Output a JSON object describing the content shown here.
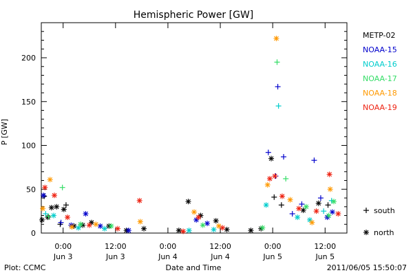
{
  "chart_data": {
    "type": "scatter",
    "title": "Hemispheric Power [GW]",
    "xlabel": "Date and Time",
    "ylabel": "P [GW]",
    "xlim": [
      "2011-06-02T19:00",
      "2011-06-05T17:00"
    ],
    "ylim": [
      0,
      240
    ],
    "yticks": [
      0,
      50,
      100,
      150,
      200
    ],
    "xticks": [
      {
        "t": "2011-06-03T00:00",
        "time": "0:00",
        "date": "Jun 3"
      },
      {
        "t": "2011-06-03T12:00",
        "time": "12:00",
        "date": "Jun 3"
      },
      {
        "t": "2011-06-04T00:00",
        "time": "0:00",
        "date": "Jun 4"
      },
      {
        "t": "2011-06-04T12:00",
        "time": "12:00",
        "date": "Jun 4"
      },
      {
        "t": "2011-06-05T00:00",
        "time": "0:00",
        "date": "Jun 5"
      },
      {
        "t": "2011-06-05T12:00",
        "time": "12:00",
        "date": "Jun 5"
      }
    ],
    "legend_placement": "right",
    "markers": {
      "south": "+",
      "north": "*"
    },
    "marker_legend": {
      "south_label": "south",
      "north_label": "north"
    },
    "series": [
      {
        "name": "METP-02",
        "color": "#000000",
        "points": [
          [
            "2011-06-02T19:10",
            15,
            "north"
          ],
          [
            "2011-06-02T19:40",
            42,
            "south"
          ],
          [
            "2011-06-02T20:30",
            18,
            "north"
          ],
          [
            "2011-06-02T21:20",
            29,
            "north"
          ],
          [
            "2011-06-02T22:30",
            30,
            "north"
          ],
          [
            "2011-06-02T23:20",
            10,
            "south"
          ],
          [
            "2011-06-03T00:10",
            27,
            "north"
          ],
          [
            "2011-06-03T00:40",
            32,
            "south"
          ],
          [
            "2011-06-03T02:30",
            8,
            "north"
          ],
          [
            "2011-06-03T04:30",
            9,
            "north"
          ],
          [
            "2011-06-03T06:30",
            12,
            "north"
          ],
          [
            "2011-06-03T10:30",
            8,
            "north"
          ],
          [
            "2011-06-03T14:30",
            3,
            "north"
          ],
          [
            "2011-06-03T18:30",
            5,
            "north"
          ],
          [
            "2011-06-04T02:30",
            3,
            "north"
          ],
          [
            "2011-06-04T04:40",
            36,
            "north"
          ],
          [
            "2011-06-04T07:30",
            20,
            "north"
          ],
          [
            "2011-06-04T11:00",
            14,
            "north"
          ],
          [
            "2011-06-04T13:30",
            4,
            "north"
          ],
          [
            "2011-06-04T19:00",
            3,
            "north"
          ],
          [
            "2011-06-04T21:20",
            5,
            "north"
          ],
          [
            "2011-06-04T23:40",
            85,
            "north"
          ],
          [
            "2011-06-05T00:20",
            41,
            "south"
          ],
          [
            "2011-06-05T02:00",
            32,
            "south"
          ],
          [
            "2011-06-05T07:00",
            26,
            "north"
          ],
          [
            "2011-06-05T10:30",
            34,
            "north"
          ],
          [
            "2011-06-05T12:40",
            32,
            "south"
          ]
        ]
      },
      {
        "name": "NOAA-15",
        "color": "#0000cc",
        "points": [
          [
            "2011-06-02T19:30",
            43,
            "north"
          ],
          [
            "2011-06-02T23:30",
            12,
            "south"
          ],
          [
            "2011-06-03T01:50",
            9,
            "north"
          ],
          [
            "2011-06-03T05:10",
            22,
            "north"
          ],
          [
            "2011-06-03T08:30",
            8,
            "north"
          ],
          [
            "2011-06-03T15:00",
            3,
            "north"
          ],
          [
            "2011-06-04T06:30",
            15,
            "north"
          ],
          [
            "2011-06-04T09:00",
            11,
            "north"
          ],
          [
            "2011-06-04T23:00",
            92,
            "south"
          ],
          [
            "2011-06-05T00:40",
            65,
            "south"
          ],
          [
            "2011-06-05T01:10",
            167,
            "south"
          ],
          [
            "2011-06-05T02:30",
            87,
            "south"
          ],
          [
            "2011-06-05T04:30",
            22,
            "south"
          ],
          [
            "2011-06-05T06:40",
            33,
            "south"
          ],
          [
            "2011-06-05T09:30",
            83,
            "south"
          ],
          [
            "2011-06-05T11:00",
            40,
            "south"
          ],
          [
            "2011-06-05T12:30",
            18,
            "north"
          ],
          [
            "2011-06-05T13:40",
            24,
            "north"
          ]
        ]
      },
      {
        "name": "NOAA-16",
        "color": "#00cccc",
        "points": [
          [
            "2011-06-02T20:00",
            22,
            "south"
          ],
          [
            "2011-06-02T21:50",
            20,
            "north"
          ],
          [
            "2011-06-03T03:30",
            6,
            "north"
          ],
          [
            "2011-06-03T09:30",
            5,
            "north"
          ],
          [
            "2011-06-04T04:50",
            3,
            "north"
          ],
          [
            "2011-06-04T10:30",
            4,
            "north"
          ],
          [
            "2011-06-04T22:30",
            32,
            "north"
          ],
          [
            "2011-06-05T01:20",
            145,
            "south"
          ],
          [
            "2011-06-05T05:40",
            18,
            "north"
          ],
          [
            "2011-06-05T08:30",
            15,
            "north"
          ],
          [
            "2011-06-05T11:40",
            25,
            "south"
          ],
          [
            "2011-06-05T13:30",
            37,
            "south"
          ]
        ]
      },
      {
        "name": "NOAA-17",
        "color": "#33dd66",
        "points": [
          [
            "2011-06-02T20:40",
            19,
            "south"
          ],
          [
            "2011-06-02T23:50",
            52,
            "south"
          ],
          [
            "2011-06-03T04:00",
            10,
            "north"
          ],
          [
            "2011-06-03T11:00",
            8,
            "north"
          ],
          [
            "2011-06-04T08:00",
            9,
            "north"
          ],
          [
            "2011-06-04T21:40",
            6,
            "north"
          ],
          [
            "2011-06-05T01:00",
            195,
            "south"
          ],
          [
            "2011-06-05T03:00",
            62,
            "south"
          ],
          [
            "2011-06-05T07:40",
            30,
            "north"
          ],
          [
            "2011-06-05T12:50",
            20,
            "north"
          ],
          [
            "2011-06-05T14:00",
            36,
            "north"
          ]
        ]
      },
      {
        "name": "NOAA-18",
        "color": "#ff9900",
        "points": [
          [
            "2011-06-02T19:20",
            28,
            "north"
          ],
          [
            "2011-06-02T21:00",
            61,
            "north"
          ],
          [
            "2011-06-03T02:00",
            7,
            "north"
          ],
          [
            "2011-06-03T07:30",
            10,
            "north"
          ],
          [
            "2011-06-03T17:40",
            13,
            "north"
          ],
          [
            "2011-06-04T06:00",
            24,
            "north"
          ],
          [
            "2011-06-04T11:40",
            8,
            "north"
          ],
          [
            "2011-06-04T22:50",
            55,
            "north"
          ],
          [
            "2011-06-05T00:50",
            222,
            "north"
          ],
          [
            "2011-06-05T04:00",
            38,
            "north"
          ],
          [
            "2011-06-05T09:00",
            12,
            "north"
          ],
          [
            "2011-06-05T13:10",
            50,
            "north"
          ]
        ]
      },
      {
        "name": "NOAA-19",
        "color": "#ee2211",
        "points": [
          [
            "2011-06-02T19:50",
            52,
            "north"
          ],
          [
            "2011-06-02T22:00",
            43,
            "north"
          ],
          [
            "2011-06-03T01:00",
            18,
            "north"
          ],
          [
            "2011-06-03T06:00",
            9,
            "north"
          ],
          [
            "2011-06-03T12:30",
            5,
            "north"
          ],
          [
            "2011-06-03T17:30",
            37,
            "north"
          ],
          [
            "2011-06-04T03:30",
            2,
            "north"
          ],
          [
            "2011-06-04T07:00",
            18,
            "north"
          ],
          [
            "2011-06-04T12:30",
            6,
            "north"
          ],
          [
            "2011-06-04T23:20",
            62,
            "north"
          ],
          [
            "2011-06-05T00:30",
            65,
            "north"
          ],
          [
            "2011-06-05T02:10",
            42,
            "north"
          ],
          [
            "2011-06-05T06:00",
            28,
            "north"
          ],
          [
            "2011-06-05T10:00",
            25,
            "north"
          ],
          [
            "2011-06-05T13:00",
            67,
            "north"
          ],
          [
            "2011-06-05T15:00",
            22,
            "north"
          ]
        ]
      }
    ]
  },
  "footer": {
    "left": "Plot: CCMC",
    "center": "Date and Time",
    "right": "2011/06/05 15:50:07"
  }
}
